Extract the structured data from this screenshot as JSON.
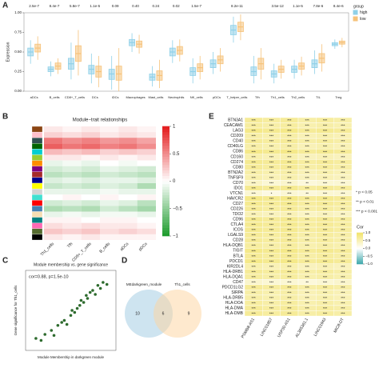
{
  "chart_data": [
    {
      "type": "box",
      "panel": "A",
      "ylabel": "Expression",
      "categories": [
        "aDCs",
        "B_cells",
        "CD8+_T_cells",
        "DCs",
        "iDCs",
        "Macrophages",
        "Mast_cells",
        "Neutrophils",
        "NK_cells",
        "pDCs",
        "T_helper_cells",
        "Tfh",
        "Th1_cells",
        "Th2_cells",
        "TIL",
        "Treg"
      ],
      "pvalues": [
        "2.5e-7",
        "8.4e-7",
        "5.8e-7",
        "1.1e-5",
        "0.09",
        "0.40",
        "0.24",
        "0.02",
        "1.5e-7",
        null,
        "8.2e-11",
        null,
        "3.5e-12",
        "1.1e-5",
        "7.8e-6",
        "8.4e-6"
      ],
      "highlight_index": 12,
      "highlight_color": "#e0301e",
      "legend_title": "group",
      "series": [
        {
          "name": "high",
          "color": "#8fd0e8",
          "median": [
            0.5,
            0.28,
            0.35,
            0.28,
            0.22,
            0.62,
            0.18,
            0.5,
            0.25,
            0.35,
            0.78,
            0.25,
            0.22,
            0.28,
            0.35,
            0.6
          ],
          "q1": [
            0.45,
            0.25,
            0.28,
            0.22,
            0.15,
            0.58,
            0.14,
            0.45,
            0.2,
            0.3,
            0.72,
            0.2,
            0.18,
            0.24,
            0.3,
            0.58
          ],
          "q3": [
            0.55,
            0.31,
            0.42,
            0.33,
            0.28,
            0.66,
            0.22,
            0.55,
            0.3,
            0.4,
            0.84,
            0.31,
            0.26,
            0.32,
            0.4,
            0.62
          ],
          "lo": [
            0.35,
            0.19,
            0.15,
            0.1,
            0.02,
            0.5,
            0.06,
            0.36,
            0.1,
            0.22,
            0.62,
            0.1,
            0.1,
            0.16,
            0.22,
            0.54
          ],
          "hi": [
            0.65,
            0.38,
            0.62,
            0.48,
            0.45,
            0.74,
            0.32,
            0.65,
            0.42,
            0.5,
            0.95,
            0.45,
            0.35,
            0.4,
            0.52,
            0.66
          ]
        },
        {
          "name": "low",
          "color": "#f6c27a",
          "median": [
            0.55,
            0.32,
            0.48,
            0.25,
            0.22,
            0.6,
            0.2,
            0.52,
            0.3,
            0.4,
            0.82,
            0.35,
            0.28,
            0.32,
            0.42,
            0.62
          ],
          "q1": [
            0.5,
            0.28,
            0.38,
            0.18,
            0.14,
            0.56,
            0.14,
            0.47,
            0.25,
            0.35,
            0.76,
            0.28,
            0.24,
            0.28,
            0.36,
            0.6
          ],
          "q3": [
            0.6,
            0.36,
            0.58,
            0.32,
            0.32,
            0.64,
            0.26,
            0.57,
            0.35,
            0.45,
            0.88,
            0.42,
            0.32,
            0.36,
            0.48,
            0.64
          ],
          "lo": [
            0.4,
            0.22,
            0.2,
            0.05,
            0.0,
            0.48,
            0.04,
            0.38,
            0.15,
            0.25,
            0.65,
            0.15,
            0.16,
            0.2,
            0.25,
            0.56
          ],
          "hi": [
            0.7,
            0.42,
            0.78,
            0.45,
            0.55,
            0.72,
            0.4,
            0.66,
            0.45,
            0.55,
            0.98,
            0.55,
            0.4,
            0.44,
            0.6,
            0.68
          ]
        }
      ],
      "ylim": [
        0,
        1
      ],
      "yticks": [
        {
          "value": 0,
          "label": "0.00"
        },
        {
          "value": 0.25,
          "label": "0.25"
        },
        {
          "value": 0.5,
          "label": "0.50"
        },
        {
          "value": 0.75,
          "label": "0.75"
        },
        {
          "value": 1,
          "label": "1.00"
        }
      ]
    },
    {
      "type": "heatmap",
      "panel": "B",
      "title": "Module−trait relationships",
      "columns": [
        "Th1_cells",
        "Tfh",
        "CD8+_T_cells",
        "B_cells",
        "aDCs",
        "pDCs"
      ],
      "highlight_index": 0,
      "highlight_color": "#e0301e",
      "module_colors": [
        "#8b4513",
        "#ffc0cb",
        "#2f4f4f",
        "#006400",
        "#00ced1",
        "#9acd32",
        "#ff8c00",
        "#800080",
        "#a52a2a",
        "#00008b",
        "#ffff00",
        "#d3d3d3",
        "#40e0d0",
        "#ff0000",
        "#4682b4",
        "#f5deb3",
        "#008080",
        "#ff69b4",
        "#556b2f",
        "#000000"
      ],
      "values": [
        [
          0.1,
          0.05,
          0.1,
          0.05,
          0.1,
          0.05
        ],
        [
          0.2,
          0.15,
          0.2,
          0.1,
          0.15,
          0.1
        ],
        [
          0.6,
          0.5,
          0.55,
          0.45,
          0.5,
          0.4
        ],
        [
          0.7,
          0.6,
          0.65,
          0.55,
          0.6,
          0.5
        ],
        [
          0.3,
          0.25,
          0.3,
          0.2,
          0.25,
          0.2
        ],
        [
          0.1,
          0.1,
          0.05,
          0.1,
          0.05,
          0.1
        ],
        [
          -0.1,
          -0.05,
          -0.1,
          0,
          -0.05,
          0
        ],
        [
          -0.2,
          -0.15,
          -0.2,
          -0.1,
          -0.15,
          -0.2
        ],
        [
          -0.3,
          -0.25,
          -0.3,
          -0.2,
          -0.25,
          -0.3
        ],
        [
          -0.15,
          -0.1,
          -0.15,
          -0.1,
          -0.1,
          -0.15
        ],
        [
          -0.25,
          -0.2,
          -0.25,
          -0.15,
          -0.2,
          -0.35
        ],
        [
          -0.1,
          -0.1,
          -0.1,
          -0.05,
          -0.1,
          -0.1
        ],
        [
          0,
          0.05,
          0,
          0.05,
          0,
          0.05
        ],
        [
          -0.2,
          -0.15,
          -0.2,
          -0.1,
          -0.15,
          -0.3
        ],
        [
          -0.35,
          -0.3,
          -0.35,
          -0.2,
          -0.3,
          -0.4
        ],
        [
          -0.1,
          -0.05,
          -0.1,
          -0.05,
          -0.05,
          -0.1
        ],
        [
          0.05,
          0.05,
          0,
          0.05,
          0.05,
          0
        ],
        [
          0.15,
          0.1,
          0.15,
          0.1,
          0.1,
          0.05
        ],
        [
          0.25,
          0.2,
          0.25,
          0.15,
          0.2,
          0.15
        ],
        [
          0.1,
          0.05,
          0.1,
          0.05,
          0.05,
          0.05
        ]
      ],
      "colors": [
        "#1a9a2a",
        "#ffffff",
        "#e31a1c"
      ],
      "clim": [
        -1,
        1
      ],
      "cticks": [
        1,
        0.5,
        0,
        {
          "value": -0.5,
          "label": "−0.5"
        },
        {
          "value": -1,
          "label": "−1"
        }
      ]
    },
    {
      "type": "scatter",
      "panel": "C",
      "title": "Module membership vs. gene significance",
      "annotation": "cor=0.88, p=1.5e-10",
      "xlabel": "Module Membership in darkgreen module",
      "ylabel": "Gene significance for Th1_cells",
      "color": "#2e6b2e",
      "xlim": [
        0.2,
        0.9
      ],
      "ylim": [
        0,
        0.8
      ],
      "x": [
        0.28,
        0.32,
        0.35,
        0.4,
        0.42,
        0.45,
        0.48,
        0.5,
        0.52,
        0.55,
        0.56,
        0.58,
        0.6,
        0.62,
        0.63,
        0.65,
        0.67,
        0.68,
        0.7,
        0.72,
        0.74,
        0.76,
        0.78,
        0.8,
        0.83
      ],
      "y": [
        0.12,
        0.1,
        0.16,
        0.2,
        0.15,
        0.25,
        0.28,
        0.3,
        0.26,
        0.35,
        0.4,
        0.38,
        0.42,
        0.45,
        0.5,
        0.48,
        0.55,
        0.52,
        0.58,
        0.6,
        0.56,
        0.65,
        0.62,
        0.68,
        0.66
      ]
    },
    {
      "type": "venn",
      "panel": "D",
      "sets": [
        "MEdarkgreen_module",
        "Th1_cells"
      ],
      "counts": [
        10,
        6,
        9
      ],
      "colors": [
        "#9ecae1",
        "#fdd49e"
      ]
    },
    {
      "type": "corr_table",
      "panel": "E",
      "rows": [
        "BTN3A1",
        "CEACAM1",
        "LAG3",
        "CD209",
        "CD40",
        "CD40LG",
        "CD86",
        "CD160",
        "CD274",
        "CD80",
        "BTN2A2",
        "TNFSF9",
        "CD70",
        "IDO1",
        "VTCN1",
        "HAVCR2",
        "CD27",
        "CD226",
        "TDO2",
        "CD96",
        "CTLA4",
        "ICOS",
        "LGALS9",
        "CD28",
        "HLA-DQB1",
        "TIGIT",
        "BTLA",
        "PDCD1",
        "KIR2DL4",
        "HLA-DRB1",
        "HLA-DQA1",
        "CD47",
        "PDCD1LG2",
        "SIRPA",
        "HLA-DRB5",
        "HLA-DOA",
        "HLA-DMA",
        "HLA-DMB"
      ],
      "columns": [
        "PSMB8-AS1",
        "LINC01857",
        "USP30-AS1",
        "AL365361.1",
        "LINC01943",
        "MIC8-DT"
      ],
      "values": [
        [
          0.7,
          0.65,
          0.7,
          0.6,
          0.65,
          0.6
        ],
        [
          0.65,
          0.6,
          0.65,
          0.55,
          0.6,
          0.55
        ],
        [
          0.8,
          0.75,
          0.8,
          0.7,
          0.75,
          0.7
        ],
        [
          0.6,
          0.55,
          0.6,
          0.5,
          0.55,
          0.5
        ],
        [
          0.7,
          0.65,
          0.7,
          0.6,
          0.65,
          0.6
        ],
        [
          0.6,
          0.55,
          0.6,
          0.5,
          0.55,
          0.5
        ],
        [
          0.8,
          0.75,
          0.8,
          0.7,
          0.75,
          0.7
        ],
        [
          0.55,
          0.5,
          0.55,
          0.45,
          0.5,
          0.45
        ],
        [
          0.75,
          0.7,
          0.75,
          0.65,
          0.7,
          0.65
        ],
        [
          0.7,
          0.65,
          0.7,
          0.6,
          0.65,
          0.6
        ],
        [
          0.6,
          0.55,
          0.6,
          0.5,
          0.55,
          0.5
        ],
        [
          0.55,
          0.5,
          0.55,
          0.45,
          0.5,
          0.45
        ],
        [
          0.4,
          0.3,
          0.35,
          0.25,
          0.3,
          0.3
        ],
        [
          0.75,
          0.7,
          0.75,
          0.65,
          0.7,
          0.65
        ],
        [
          0.3,
          0.2,
          0.3,
          0.25,
          0.3,
          0.3
        ],
        [
          0.8,
          0.75,
          0.8,
          0.7,
          0.75,
          0.7
        ],
        [
          0.75,
          0.7,
          0.75,
          0.65,
          0.7,
          0.65
        ],
        [
          0.7,
          0.65,
          0.7,
          0.6,
          0.65,
          0.6
        ],
        [
          0.5,
          0.45,
          0.5,
          0.4,
          0.45,
          0.4
        ],
        [
          0.75,
          0.7,
          0.75,
          0.65,
          0.7,
          0.65
        ],
        [
          0.75,
          0.7,
          0.75,
          0.65,
          0.7,
          0.65
        ],
        [
          0.75,
          0.7,
          0.75,
          0.65,
          0.7,
          0.65
        ],
        [
          0.7,
          0.65,
          0.7,
          0.6,
          0.65,
          0.6
        ],
        [
          0.7,
          0.65,
          0.7,
          0.6,
          0.65,
          0.6
        ],
        [
          0.65,
          0.6,
          0.65,
          0.55,
          0.6,
          0.55
        ],
        [
          0.8,
          0.75,
          0.8,
          0.7,
          0.75,
          0.7
        ],
        [
          0.7,
          0.65,
          0.7,
          0.6,
          0.65,
          0.6
        ],
        [
          0.8,
          0.75,
          0.8,
          0.7,
          0.75,
          0.7
        ],
        [
          0.55,
          0.5,
          0.55,
          0.45,
          0.5,
          0.45
        ],
        [
          0.7,
          0.65,
          0.7,
          0.6,
          0.65,
          0.6
        ],
        [
          0.65,
          0.6,
          0.65,
          0.55,
          0.6,
          0.55
        ],
        [
          0.35,
          0.3,
          0.3,
          0.25,
          0.3,
          0.35
        ],
        [
          0.7,
          0.65,
          0.7,
          0.6,
          0.65,
          0.6
        ],
        [
          0.6,
          0.55,
          0.6,
          0.5,
          0.55,
          0.5
        ],
        [
          0.6,
          0.55,
          0.6,
          0.5,
          0.55,
          0.5
        ],
        [
          0.65,
          0.6,
          0.65,
          0.55,
          0.6,
          0.55
        ],
        [
          0.7,
          0.65,
          0.7,
          0.6,
          0.65,
          0.6
        ],
        [
          0.7,
          0.65,
          0.7,
          0.6,
          0.65,
          0.6
        ]
      ],
      "stars": [
        [
          "***",
          "***",
          "***",
          "***",
          "***",
          "***"
        ],
        [
          "***",
          "***",
          "***",
          "***",
          "***",
          "***"
        ],
        [
          "***",
          "***",
          "***",
          "***",
          "***",
          "***"
        ],
        [
          "***",
          "***",
          "***",
          "***",
          "***",
          "***"
        ],
        [
          "***",
          "***",
          "***",
          "***",
          "***",
          "***"
        ],
        [
          "***",
          "***",
          "***",
          "***",
          "***",
          "***"
        ],
        [
          "***",
          "***",
          "***",
          "***",
          "***",
          "***"
        ],
        [
          "***",
          "***",
          "***",
          "***",
          "***",
          "***"
        ],
        [
          "***",
          "***",
          "***",
          "***",
          "***",
          "***"
        ],
        [
          "***",
          "***",
          "***",
          "***",
          "***",
          "***"
        ],
        [
          "***",
          "***",
          "***",
          "***",
          "***",
          "***"
        ],
        [
          "***",
          "***",
          "***",
          "***",
          "***",
          "***"
        ],
        [
          "***",
          "***",
          "***",
          "**",
          "***",
          "***"
        ],
        [
          "***",
          "***",
          "***",
          "***",
          "***",
          "***"
        ],
        [
          "***",
          "*",
          "***",
          "**",
          "***",
          "***"
        ],
        [
          "***",
          "***",
          "***",
          "***",
          "***",
          "***"
        ],
        [
          "***",
          "***",
          "***",
          "***",
          "***",
          "***"
        ],
        [
          "***",
          "***",
          "***",
          "***",
          "***",
          "***"
        ],
        [
          "***",
          "***",
          "***",
          "***",
          "***",
          "***"
        ],
        [
          "***",
          "***",
          "***",
          "***",
          "***",
          "***"
        ],
        [
          "***",
          "***",
          "***",
          "***",
          "***",
          "***"
        ],
        [
          "***",
          "***",
          "***",
          "***",
          "***",
          "***"
        ],
        [
          "***",
          "***",
          "***",
          "***",
          "***",
          "***"
        ],
        [
          "***",
          "***",
          "***",
          "***",
          "***",
          "***"
        ],
        [
          "***",
          "***",
          "***",
          "***",
          "***",
          "***"
        ],
        [
          "***",
          "***",
          "***",
          "***",
          "***",
          "***"
        ],
        [
          "***",
          "***",
          "***",
          "***",
          "***",
          "***"
        ],
        [
          "***",
          "***",
          "***",
          "***",
          "***",
          "***"
        ],
        [
          "***",
          "***",
          "***",
          "***",
          "***",
          "***"
        ],
        [
          "***",
          "***",
          "***",
          "***",
          "***",
          "***"
        ],
        [
          "***",
          "***",
          "***",
          "***",
          "***",
          "***"
        ],
        [
          "***",
          "***",
          "***",
          "**",
          "***",
          "***"
        ],
        [
          "***",
          "***",
          "***",
          "***",
          "***",
          "***"
        ],
        [
          "***",
          "***",
          "***",
          "***",
          "***",
          "***"
        ],
        [
          "***",
          "***",
          "***",
          "***",
          "***",
          "***"
        ],
        [
          "***",
          "***",
          "***",
          "***",
          "***",
          "***"
        ],
        [
          "***",
          "***",
          "***",
          "***",
          "***",
          "***"
        ],
        [
          "***",
          "***",
          "***",
          "***",
          "***",
          "***"
        ]
      ],
      "sig_legend": [
        "* p < 0.05",
        "** p < 0.01",
        "*** p < 0.001"
      ],
      "legend_title": "Cor",
      "colors": [
        "#3aa6aa",
        "#ffffff",
        "#f2e36c"
      ],
      "clim": [
        -1,
        1
      ],
      "cticks": [
        {
          "value": 1,
          "label": "1.0"
        },
        {
          "value": 0.5,
          "label": "0.5"
        },
        {
          "value": 0,
          "label": "0.0"
        },
        {
          "value": -0.5,
          "label": "−0.5"
        },
        {
          "value": -1,
          "label": "−1.0"
        }
      ]
    }
  ]
}
